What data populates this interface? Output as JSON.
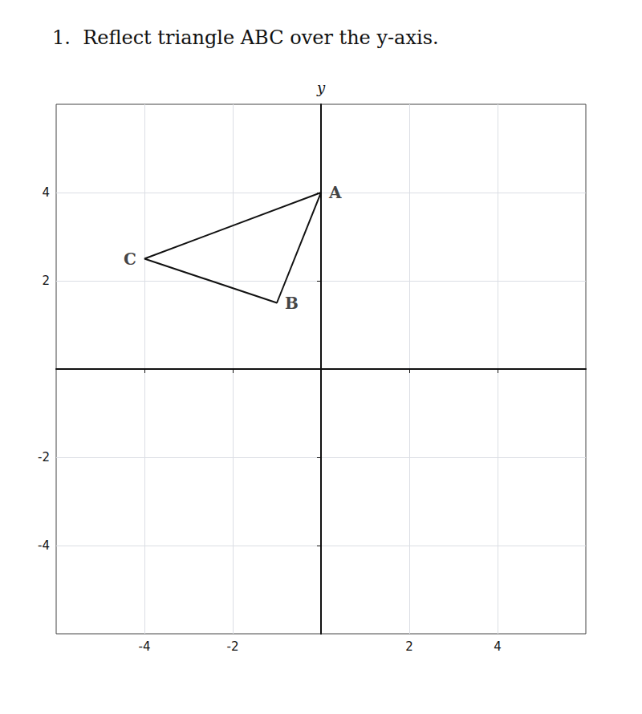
{
  "chart_data": {
    "type": "line",
    "title": "1.  Reflect triangle ABC over the y-axis.",
    "y_label": "y",
    "x": [
      0,
      -1,
      -4,
      0
    ],
    "values": [
      4,
      1.5,
      2.5,
      4
    ],
    "color": "#111111",
    "annotations": [
      {
        "text": "A",
        "x": 0,
        "y": 4
      },
      {
        "text": "B",
        "x": -1,
        "y": 1.5
      },
      {
        "text": "C",
        "x": -4,
        "y": 2.5
      }
    ],
    "xlim": [
      -6,
      6
    ],
    "ylim": [
      -6,
      6
    ],
    "xticks": [
      -4,
      -2,
      2,
      4
    ],
    "yticks": [
      -4,
      -2,
      2,
      4
    ],
    "grid": true
  }
}
